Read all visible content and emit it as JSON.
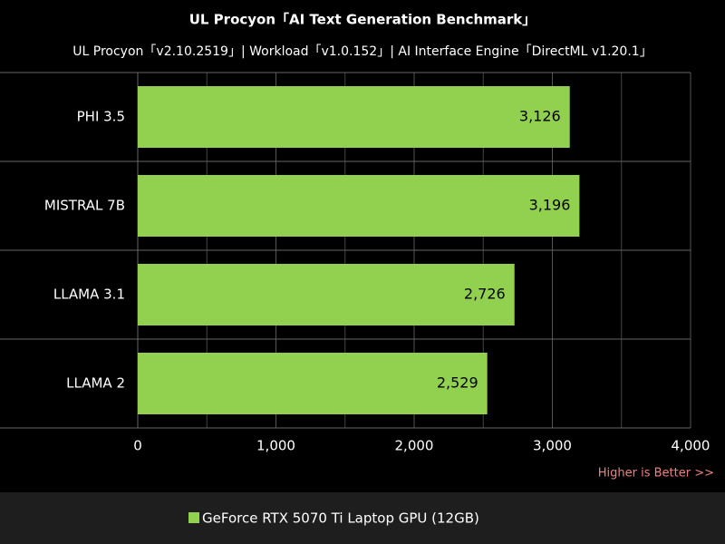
{
  "chart_data": {
    "type": "barh",
    "title": "UL Procyon「AI Text Generation Benchmark」",
    "subtitle": "UL Procyon「v2.10.2519」| Workload「v1.0.152」| AI Interface Engine「DirectML v1.20.1」",
    "categories": [
      "PHI 3.5",
      "MISTRAL 7B",
      "LLAMA 3.1",
      "LLAMA 2"
    ],
    "series": [
      {
        "name": "GeForce RTX 5070 Ti Laptop GPU (12GB)",
        "color": "#92d050",
        "values": [
          3126,
          3196,
          2726,
          2529
        ],
        "value_labels": [
          "3,126",
          "3,196",
          "2,726",
          "2,529"
        ]
      }
    ],
    "xlim": [
      0,
      4000
    ],
    "xticks": [
      0,
      {
        "value": 1000,
        "label": "1,000"
      },
      {
        "value": 2000,
        "label": "2,000"
      },
      {
        "value": 3000,
        "label": "3,000"
      },
      {
        "value": 4000,
        "label": "4,000"
      }
    ],
    "x_minor_ticks": [
      500,
      1500,
      2500,
      3500
    ],
    "grid": true,
    "note": "Higher is Better >>",
    "legend": "bottom"
  }
}
